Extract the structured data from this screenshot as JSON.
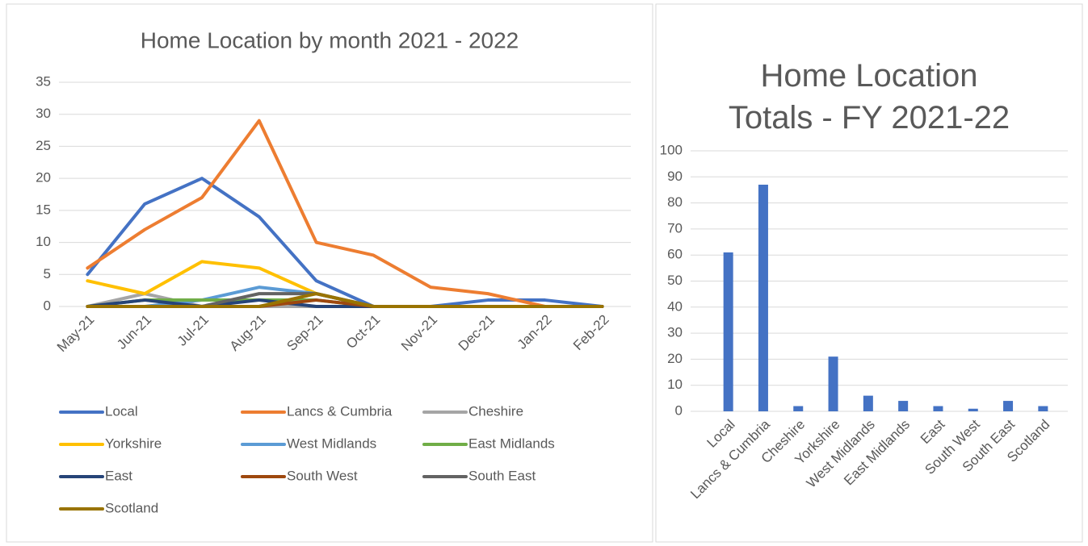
{
  "chart_data": [
    {
      "type": "line",
      "title": "Home Location by month 2021 - 2022",
      "categories": [
        "May-21",
        "Jun-21",
        "Jul-21",
        "Aug-21",
        "Sep-21",
        "Oct-21",
        "Nov-21",
        "Dec-21",
        "Jan-22",
        "Feb-22"
      ],
      "ylim": [
        0,
        35
      ],
      "yticks": [
        0,
        5,
        10,
        15,
        20,
        25,
        30,
        35
      ],
      "grid": true,
      "legend": "bottom",
      "series": [
        {
          "name": "Local",
          "color": "#4472c4",
          "values": [
            5,
            16,
            20,
            14,
            4,
            0,
            0,
            1,
            1,
            0
          ]
        },
        {
          "name": "Lancs & Cumbria",
          "color": "#ed7d31",
          "values": [
            6,
            12,
            17,
            29,
            10,
            8,
            3,
            2,
            0,
            0
          ]
        },
        {
          "name": "Cheshire",
          "color": "#a5a5a5",
          "values": [
            0,
            2,
            0,
            0,
            0,
            0,
            0,
            0,
            0,
            0
          ]
        },
        {
          "name": "Yorkshire",
          "color": "#ffc000",
          "values": [
            4,
            2,
            7,
            6,
            2,
            0,
            0,
            0,
            0,
            0
          ]
        },
        {
          "name": "West Midlands",
          "color": "#5b9bd5",
          "values": [
            0,
            0,
            1,
            3,
            2,
            0,
            0,
            0,
            0,
            0
          ]
        },
        {
          "name": "East Midlands",
          "color": "#70ad47",
          "values": [
            0,
            1,
            1,
            1,
            1,
            0,
            0,
            0,
            0,
            0
          ]
        },
        {
          "name": "East",
          "color": "#264478",
          "values": [
            0,
            1,
            0,
            1,
            0,
            0,
            0,
            0,
            0,
            0
          ]
        },
        {
          "name": "South West",
          "color": "#9e480e",
          "values": [
            0,
            0,
            0,
            0,
            1,
            0,
            0,
            0,
            0,
            0
          ]
        },
        {
          "name": "South East",
          "color": "#636363",
          "values": [
            0,
            0,
            0,
            2,
            2,
            0,
            0,
            0,
            0,
            0
          ]
        },
        {
          "name": "Scotland",
          "color": "#997300",
          "values": [
            0,
            0,
            0,
            0,
            2,
            0,
            0,
            0,
            0,
            0
          ]
        }
      ]
    },
    {
      "type": "bar",
      "title": "Home Location Totals - FY 2021-22",
      "categories": [
        "Local",
        "Lancs & Cumbria",
        "Cheshire",
        "Yorkshire",
        "West Midlands",
        "East Midlands",
        "East",
        "South West",
        "South East",
        "Scotland"
      ],
      "values": [
        61,
        87,
        2,
        21,
        6,
        4,
        2,
        1,
        4,
        2
      ],
      "color": "#4472c4",
      "ylim": [
        0,
        100
      ],
      "yticks": [
        0,
        10,
        20,
        30,
        40,
        50,
        60,
        70,
        80,
        90,
        100
      ],
      "grid": true
    }
  ]
}
